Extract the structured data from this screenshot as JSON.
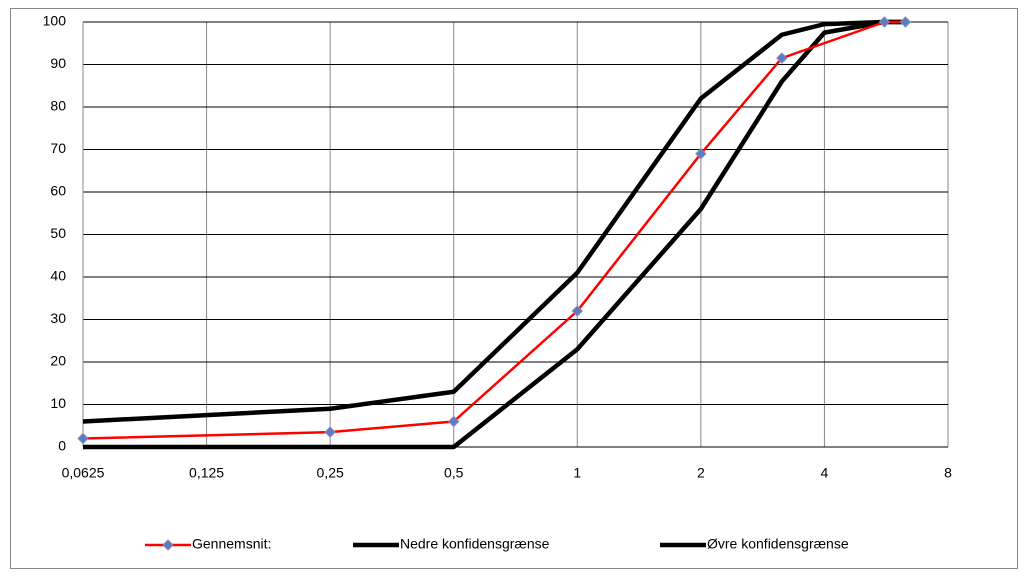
{
  "chart_data": {
    "type": "line",
    "xscale": "log",
    "grid": true,
    "legend": "bottom",
    "xlim": [
      0.0625,
      8
    ],
    "ylim": [
      0,
      100
    ],
    "xticks": [
      {
        "value": 0.0625,
        "label": "0,0625"
      },
      {
        "value": 0.125,
        "label": "0,125"
      },
      {
        "value": 0.25,
        "label": "0,25"
      },
      {
        "value": 0.5,
        "label": "0,5"
      },
      1,
      2,
      4,
      8
    ],
    "yticks": [
      0,
      10,
      20,
      30,
      40,
      50,
      60,
      70,
      80,
      90,
      100
    ],
    "series": [
      {
        "name": "Gennemsnit:",
        "color": "#ff0000",
        "marker_color": "#5b7bc8",
        "x": [
          0.0625,
          0.25,
          0.5,
          1,
          2,
          3.15,
          5.6,
          6.3
        ],
        "values": [
          2,
          3.5,
          6,
          32,
          69,
          91.5,
          100,
          100
        ]
      },
      {
        "name": "Nedre konfidensgrænse",
        "color": "#000000",
        "x": [
          0.0625,
          0.25,
          0.5,
          1,
          2,
          3.15,
          4,
          5.6,
          6.3
        ],
        "values": [
          0,
          0,
          0,
          23,
          56,
          86,
          97.5,
          100,
          100
        ]
      },
      {
        "name": "Øvre konfidensgrænse",
        "color": "#000000",
        "x": [
          0.0625,
          0.25,
          0.5,
          1,
          2,
          3.15,
          4,
          5.6,
          6.3
        ],
        "values": [
          6,
          9,
          13,
          41,
          82,
          97,
          99.5,
          100,
          100
        ]
      }
    ]
  }
}
